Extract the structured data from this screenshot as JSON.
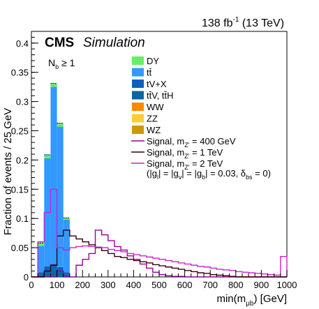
{
  "header": {
    "lumi": "138 fb",
    "lumi_sup": "-1",
    "energy": " (13 TeV)"
  },
  "cms": {
    "bold": "CMS",
    "italic": "Simulation"
  },
  "selection": {
    "main": "N",
    "sub": "b",
    "rest": " ≥ 1"
  },
  "legend": {
    "entries": [
      {
        "key": "dy",
        "label": "DY",
        "color": "#66ee66"
      },
      {
        "key": "tt",
        "label": "tt̄",
        "color": "#3399ff"
      },
      {
        "key": "tvx",
        "label": "tV+X",
        "color": "#0f5fc0"
      },
      {
        "key": "ttvh",
        "label": "tt̄V, tt̄H",
        "color": "#0c66a0"
      },
      {
        "key": "ww",
        "label": "WW",
        "color": "#ff8800"
      },
      {
        "key": "zz",
        "label": "ZZ",
        "color": "#ffcc33"
      },
      {
        "key": "wz",
        "label": "WZ",
        "color": "#cc9900"
      }
    ],
    "signals": [
      {
        "pre": "Signal, m",
        "sub": "Z'",
        "post": " = 400 GeV",
        "color": "#990099"
      },
      {
        "pre": "Signal, m",
        "sub": "Z'",
        "post": " = 1 TeV",
        "color": "#330011"
      },
      {
        "pre": "Signal, m",
        "sub": "Z'",
        "post": " = 2 TeV",
        "color": "#cc22cc"
      }
    ],
    "couplings": {
      "p1": "(|g",
      "s1": "l",
      "p2": "| = |g",
      "s2": "ν",
      "p3": "| = |g",
      "s3": "b",
      "p4": "| = 0.03, δ",
      "s4": "bs",
      "p5": " = 0)"
    }
  },
  "chart_data": {
    "type": "bar",
    "stacked": true,
    "bin_width": 25,
    "x_edges": [
      25,
      50,
      75,
      100,
      125,
      150
    ],
    "xlim": [
      0,
      1000
    ],
    "ylim": [
      0,
      0.42
    ],
    "xlabel": {
      "main": "min(m",
      "sub": "μb",
      "post": ") [GeV]"
    },
    "ylabel": "Fraction of events / 25 GeV",
    "x_ticks": [
      0,
      100,
      200,
      300,
      400,
      500,
      600,
      700,
      800,
      900,
      1000
    ],
    "y_ticks": [
      0,
      0.05,
      0.1,
      0.15,
      0.2,
      0.25,
      0.3,
      0.35,
      0.4
    ],
    "y_tick_labels": [
      "0",
      "0.05",
      "0.1",
      "0.15",
      "0.2",
      "0.25",
      "0.3",
      "0.35",
      "0.4"
    ],
    "series": [
      {
        "name": "tt̄V, tt̄H",
        "color": "#0c66a0",
        "values": [
          0.004,
          0.01,
          0.012,
          0.009,
          0.004
        ]
      },
      {
        "name": "tV+X",
        "color": "#0f5fc0",
        "values": [
          0.004,
          0.008,
          0.01,
          0.008,
          0.004
        ]
      },
      {
        "name": "tt̄",
        "color": "#3399ff",
        "values": [
          0.045,
          0.185,
          0.303,
          0.24,
          0.09
        ]
      },
      {
        "name": "DY",
        "color": "#66ee66",
        "values": [
          0.005,
          0.006,
          0.006,
          0.006,
          0.003
        ]
      }
    ],
    "signal_edges": [
      0,
      25,
      50,
      75,
      100,
      125,
      150,
      175,
      200,
      225,
      250,
      275,
      300,
      325,
      350,
      375,
      400,
      425,
      450,
      475,
      500,
      525,
      550,
      575,
      600,
      625,
      650,
      675,
      700,
      725,
      750,
      775,
      800,
      825,
      850,
      875,
      900,
      925,
      950,
      975,
      1000
    ],
    "signal_series": [
      {
        "name": "Signal, m_Z' = 400 GeV",
        "color": "#990099",
        "values": [
          0,
          0,
          0,
          0,
          0.01,
          0,
          0,
          0.02,
          0.03,
          0.04,
          0.08,
          0.072,
          0.062,
          0.052,
          0.046,
          0.036,
          0.03,
          0.022,
          0.015,
          0.008,
          0.004,
          0.002,
          0.001,
          0.001,
          0,
          0,
          0,
          0,
          0,
          0,
          0,
          0,
          0,
          0,
          0,
          0,
          0,
          0,
          0,
          0
        ]
      },
      {
        "name": "Signal, m_Z' = 1 TeV",
        "color": "#330011",
        "values": [
          0,
          0,
          0.01,
          0.02,
          0.07,
          0.08,
          0.07,
          0.065,
          0.06,
          0.055,
          0.05,
          0.045,
          0.04,
          0.035,
          0.033,
          0.03,
          0.028,
          0.026,
          0.024,
          0.021,
          0.019,
          0.017,
          0.015,
          0.013,
          0.011,
          0.009,
          0.007,
          0.006,
          0.004,
          0.003,
          0.002,
          0.001,
          0,
          0,
          0,
          0,
          0,
          0,
          0,
          0
        ]
      },
      {
        "name": "Signal, m_Z' = 2 TeV",
        "color": "#cc22cc",
        "values": [
          0,
          0.06,
          0.11,
          0.15,
          0.05,
          0.046,
          0.05,
          0.052,
          0.053,
          0.052,
          0.051,
          0.05,
          0.047,
          0.045,
          0.043,
          0.04,
          0.038,
          0.036,
          0.034,
          0.032,
          0.03,
          0.028,
          0.026,
          0.024,
          0.022,
          0.02,
          0.018,
          0.017,
          0.015,
          0.013,
          0.012,
          0.011,
          0.009,
          0.008,
          0.007,
          0.006,
          0.005,
          0.004,
          0.003,
          0.035
        ]
      }
    ]
  }
}
